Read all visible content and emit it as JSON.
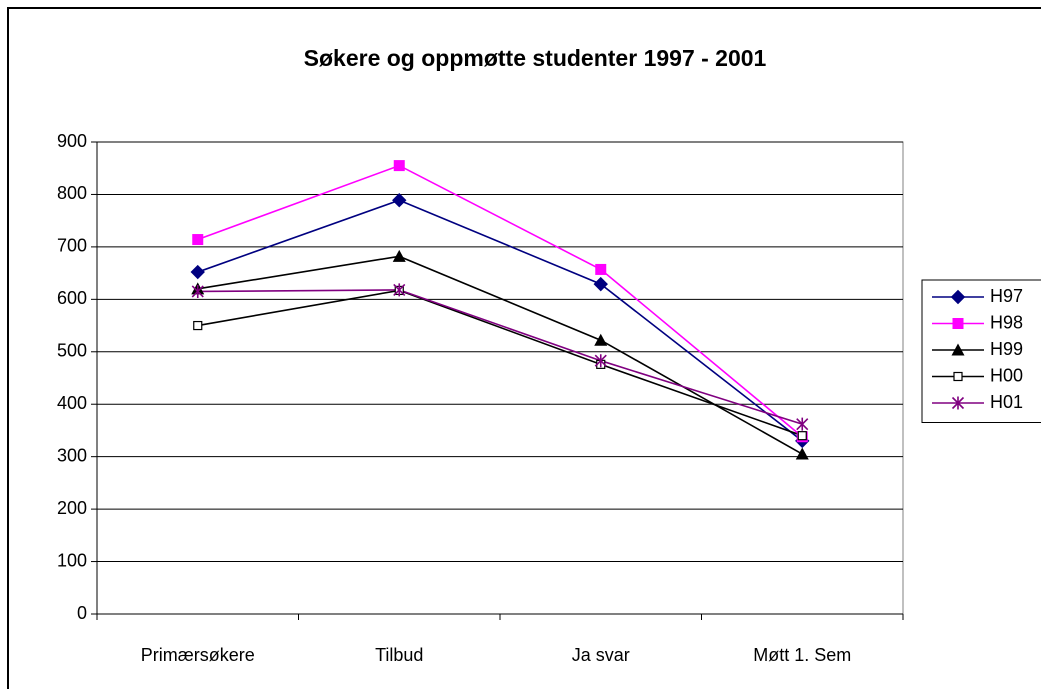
{
  "chart_data": {
    "type": "line",
    "title": "Søkere og oppmøtte studenter 1997 - 2001",
    "categories": [
      "Primærsøkere",
      "Tilbud",
      "Ja svar",
      "Møtt 1. Sem"
    ],
    "series": [
      {
        "name": "H97",
        "color": "#000080",
        "marker": "diamond",
        "values": [
          652,
          789,
          629,
          330
        ]
      },
      {
        "name": "H98",
        "color": "#ff00ff",
        "marker": "square",
        "values": [
          714,
          855,
          657,
          338
        ]
      },
      {
        "name": "H99",
        "color": "#000000",
        "marker": "triangle",
        "values": [
          620,
          682,
          522,
          305
        ]
      },
      {
        "name": "H00",
        "color": "#000000",
        "marker": "open-square",
        "values": [
          550,
          617,
          476,
          340
        ]
      },
      {
        "name": "H01",
        "color": "#800080",
        "marker": "star",
        "values": [
          615,
          618,
          483,
          362
        ]
      }
    ],
    "ylim": [
      0,
      900
    ],
    "yticks": [
      0,
      100,
      200,
      300,
      400,
      500,
      600,
      700,
      800,
      900
    ],
    "grid": true,
    "legend": "right"
  }
}
